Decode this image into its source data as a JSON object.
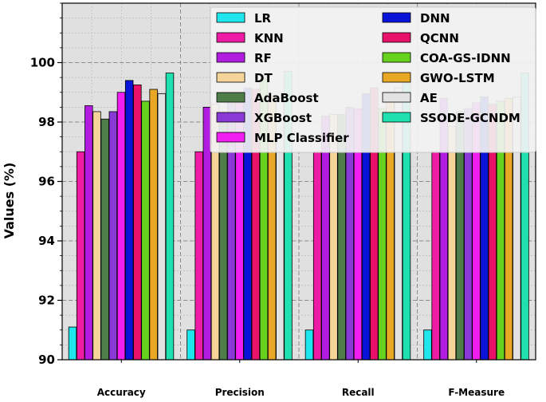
{
  "chart_data": {
    "type": "bar",
    "categories": [
      "Accuracy",
      "Precision",
      "Recall",
      "F-Measure"
    ],
    "xlabel": "",
    "ylabel": "Values (%)",
    "ylim": [
      90,
      102
    ],
    "yticks": [
      90,
      92,
      94,
      96,
      98,
      100
    ],
    "grid": true,
    "legend_position": "top-right",
    "series": [
      {
        "name": "LR",
        "color": "#1ee6ec",
        "values": [
          91.1,
          91.0,
          91.0,
          91.0
        ]
      },
      {
        "name": "KNN",
        "color": "#ee1ca4",
        "values": [
          97.0,
          97.0,
          97.0,
          97.0
        ]
      },
      {
        "name": "RF",
        "color": "#b21ce0",
        "values": [
          98.55,
          98.5,
          98.2,
          98.8
        ]
      },
      {
        "name": "DT",
        "color": "#f5d49a",
        "values": [
          98.35,
          98.6,
          98.25,
          97.85
        ]
      },
      {
        "name": "AdaBoost",
        "color": "#4e7d4a",
        "values": [
          98.1,
          98.1,
          98.25,
          98.35
        ]
      },
      {
        "name": "XGBoost",
        "color": "#8a38d6",
        "values": [
          98.35,
          98.65,
          98.5,
          98.45
        ]
      },
      {
        "name": "MLP Classifier",
        "color": "#f01ef0",
        "values": [
          99.0,
          98.65,
          98.45,
          98.65
        ]
      },
      {
        "name": "DNN",
        "color": "#0a14d8",
        "values": [
          99.4,
          99.15,
          98.95,
          98.85
        ]
      },
      {
        "name": "QCNN",
        "color": "#e8126a",
        "values": [
          99.25,
          99.1,
          99.15,
          98.6
        ]
      },
      {
        "name": "COA-GS-IDNN",
        "color": "#66d21e",
        "values": [
          98.7,
          99.45,
          98.45,
          98.7
        ]
      },
      {
        "name": "GWO-LSTM",
        "color": "#e8a826",
        "values": [
          99.1,
          98.85,
          98.7,
          98.8
        ]
      },
      {
        "name": "AE",
        "color": "#e2e2e2",
        "values": [
          98.95,
          98.8,
          99.15,
          98.85
        ]
      },
      {
        "name": "SSODE-GCNDM",
        "color": "#20e0b0",
        "values": [
          99.65,
          99.7,
          99.65,
          99.65
        ]
      }
    ]
  }
}
